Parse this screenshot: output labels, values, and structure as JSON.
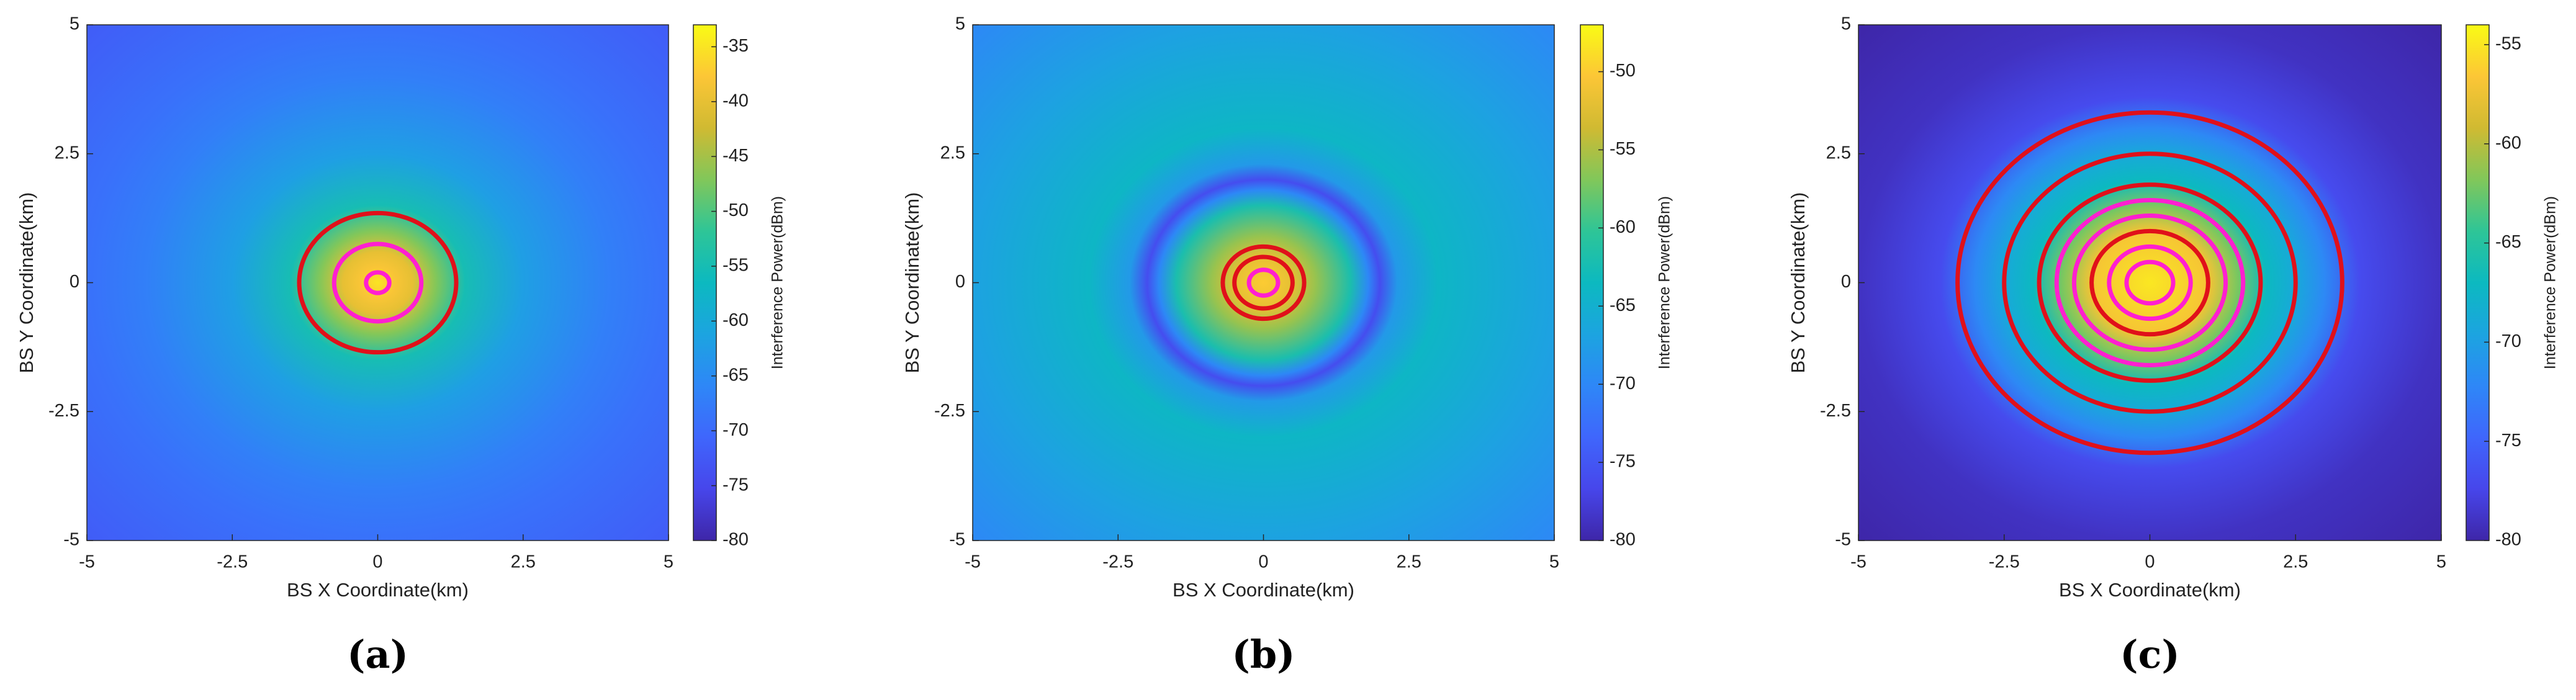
{
  "chart_data": [
    {
      "type": "heatmap",
      "caption": "(a)",
      "x_label": "BS X Coordinate(km)",
      "y_label": "BS Y Coordinate(km)",
      "colorbar_label": "Interference Power(dBm)",
      "xlim": [
        -5,
        5
      ],
      "ylim": [
        -5,
        5
      ],
      "xticks": [
        -5,
        -2.5,
        0,
        2.5,
        5
      ],
      "yticks": [
        -5,
        -2.5,
        0,
        2.5,
        5
      ],
      "clim": [
        -80,
        -33
      ],
      "cticks": [
        -80,
        -75,
        -70,
        -65,
        -60,
        -55,
        -50,
        -45,
        -40,
        -35
      ],
      "colormap": [
        "#3e26a8",
        "#4746eb",
        "#3f66fc",
        "#2e87f7",
        "#1ca4e0",
        "#0cb9c0",
        "#2ec597",
        "#81c75a",
        "#d0ba32",
        "#fcc636",
        "#f9fb15"
      ],
      "radius": [
        0,
        0.3,
        0.6,
        1.0,
        1.5,
        2.5,
        4,
        5,
        7.1
      ],
      "values": [
        -35,
        -38,
        -40,
        -47,
        -55,
        -62,
        -67,
        -69,
        -72
      ],
      "contours": [
        {
          "radius": 1.35,
          "color": "#e0101a"
        },
        {
          "radius": 0.75,
          "color": "#ff1fd0"
        },
        {
          "radius": 0.2,
          "color": "#ff1fd0"
        }
      ]
    },
    {
      "type": "heatmap",
      "caption": "(b)",
      "x_label": "BS X Coordinate(km)",
      "y_label": "BS Y Coordinate(km)",
      "colorbar_label": "Interference Power(dBm)",
      "xlim": [
        -5,
        5
      ],
      "ylim": [
        -5,
        5
      ],
      "xticks": [
        -5,
        -2.5,
        0,
        2.5,
        5
      ],
      "yticks": [
        -5,
        -2.5,
        0,
        2.5,
        5
      ],
      "clim": [
        -80,
        -47
      ],
      "cticks": [
        -80,
        -75,
        -70,
        -65,
        -60,
        -55,
        -50
      ],
      "colormap": [
        "#3e26a8",
        "#4746eb",
        "#3f66fc",
        "#2e87f7",
        "#1ca4e0",
        "#0cb9c0",
        "#2ec597",
        "#81c75a",
        "#d0ba32",
        "#fcc636",
        "#f9fb15"
      ],
      "radius": [
        0,
        0.5,
        0.9,
        1.5,
        1.8,
        2.0,
        2.3,
        3,
        5,
        7.1
      ],
      "values": [
        -50,
        -52,
        -56,
        -62,
        -70,
        -76,
        -68,
        -64,
        -67,
        -70
      ],
      "contours": [
        {
          "radius": 0.7,
          "color": "#e0101a"
        },
        {
          "radius": 0.5,
          "color": "#e0101a"
        },
        {
          "radius": 0.25,
          "color": "#ff1fd0"
        }
      ]
    },
    {
      "type": "heatmap",
      "caption": "(c)",
      "x_label": "BS X Coordinate(km)",
      "y_label": "BS Y Coordinate(km)",
      "colorbar_label": "Interference Power(dBm)",
      "xlim": [
        -5,
        5
      ],
      "ylim": [
        -5,
        5
      ],
      "xticks": [
        -5,
        -2.5,
        0,
        2.5,
        5
      ],
      "yticks": [
        -5,
        -2.5,
        0,
        2.5,
        5
      ],
      "clim": [
        -80,
        -54
      ],
      "cticks": [
        -80,
        -75,
        -70,
        -65,
        -60,
        -55
      ],
      "colormap": [
        "#3e26a8",
        "#4746eb",
        "#3f66fc",
        "#2e87f7",
        "#1ca4e0",
        "#0cb9c0",
        "#2ec597",
        "#81c75a",
        "#d0ba32",
        "#fcc636",
        "#f9fb15"
      ],
      "radius": [
        0,
        1.0,
        1.5,
        2.0,
        2.5,
        3.0,
        3.6,
        5,
        7.1
      ],
      "values": [
        -55,
        -57,
        -62,
        -67,
        -69,
        -72,
        -77,
        -79,
        -80
      ],
      "contours": [
        {
          "radius": 3.3,
          "color": "#e0101a"
        },
        {
          "radius": 2.5,
          "color": "#e0101a"
        },
        {
          "radius": 1.9,
          "color": "#e0101a"
        },
        {
          "radius": 1.6,
          "color": "#ff1fd0"
        },
        {
          "radius": 1.3,
          "color": "#ff1fd0"
        },
        {
          "radius": 1.0,
          "color": "#e0101a"
        },
        {
          "radius": 0.7,
          "color": "#ff1fd0"
        },
        {
          "radius": 0.4,
          "color": "#ff1fd0"
        }
      ]
    }
  ]
}
